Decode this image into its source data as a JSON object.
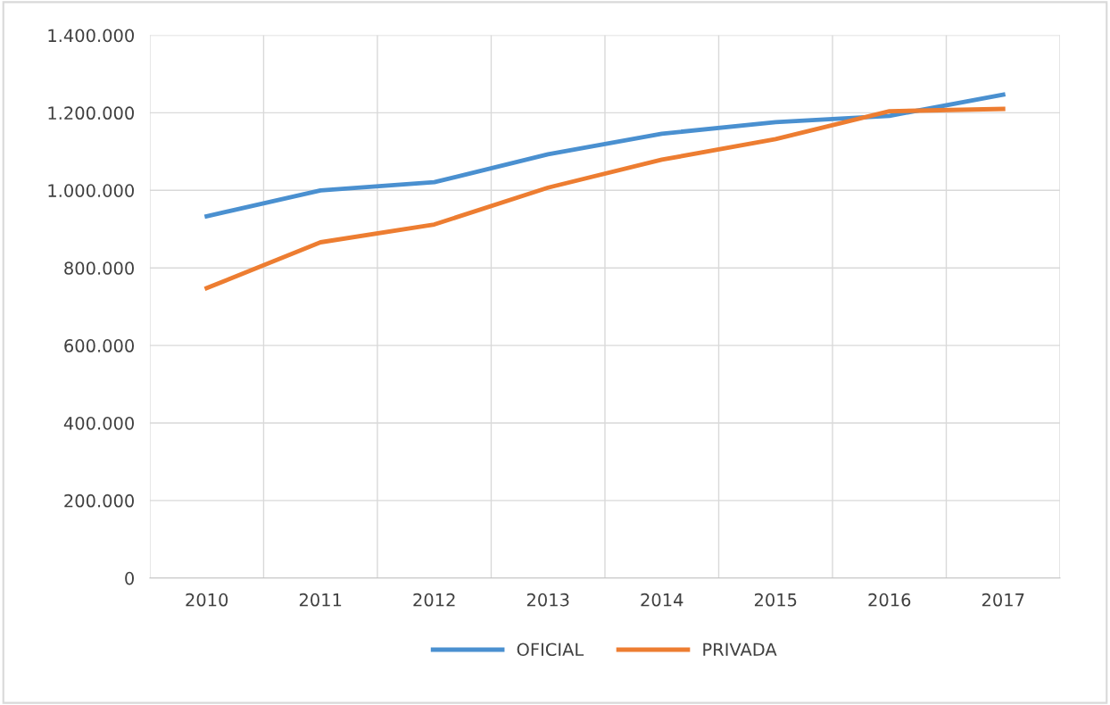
{
  "chart_data": {
    "type": "line",
    "categories": [
      "2010",
      "2011",
      "2012",
      "2013",
      "2014",
      "2015",
      "2016",
      "2017"
    ],
    "series": [
      {
        "name": "OFICIAL",
        "color": "#4a90d0",
        "values": [
          933000,
          1000000,
          1021000,
          1093000,
          1146000,
          1176000,
          1192000,
          1247000
        ]
      },
      {
        "name": "PRIVADA",
        "color": "#ed7d31",
        "values": [
          748000,
          866000,
          912000,
          1007000,
          1079000,
          1132000,
          1204000,
          1210000
        ]
      }
    ],
    "ylim": [
      0,
      1400000
    ],
    "yticks": [
      0,
      {
        "value": 200000,
        "label": "200.000"
      },
      {
        "value": 400000,
        "label": "400.000"
      },
      {
        "value": 600000,
        "label": "600.000"
      },
      {
        "value": 800000,
        "label": "800.000"
      },
      {
        "value": 1000000,
        "label": "1.000.000"
      },
      {
        "value": 1200000,
        "label": "1.200.000"
      },
      {
        "value": 1400000,
        "label": "1.400.000"
      }
    ],
    "grid": true,
    "legend": "bottom",
    "marker": "none",
    "line_style": "solid"
  }
}
